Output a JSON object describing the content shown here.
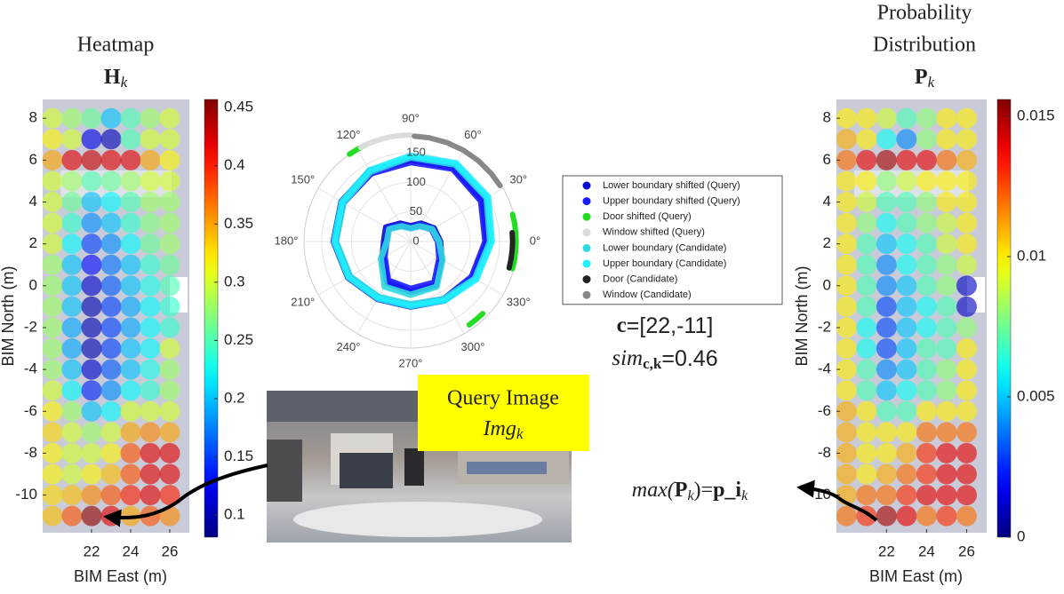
{
  "chart_data": [
    {
      "type": "heatmap",
      "title_lines": [
        "Heatmap"
      ],
      "title_symbol": "H",
      "title_subscript": "k",
      "xlabel": "BIM East (m)",
      "ylabel": "BIM North (m)",
      "x": [
        20,
        21,
        22,
        23,
        24,
        25,
        26
      ],
      "y": [
        8,
        7,
        6,
        5,
        4,
        3,
        2,
        1,
        0,
        -1,
        -2,
        -3,
        -4,
        -5,
        -6,
        -7,
        -8,
        -9,
        -10,
        -11
      ],
      "values": [
        [
          0.3,
          0.28,
          0.26,
          0.2,
          0.25,
          0.28,
          0.3
        ],
        [
          0.32,
          0.3,
          0.12,
          0.1,
          0.25,
          0.3,
          0.3
        ],
        [
          0.35,
          0.42,
          0.43,
          0.42,
          0.42,
          0.35,
          0.32
        ],
        [
          0.3,
          0.28,
          0.25,
          0.26,
          0.28,
          0.3,
          0.3
        ],
        [
          0.3,
          0.26,
          0.2,
          0.22,
          0.25,
          0.28,
          0.28
        ],
        [
          0.3,
          0.24,
          0.18,
          0.2,
          0.24,
          0.27,
          0.28
        ],
        [
          0.3,
          0.22,
          0.15,
          0.18,
          0.22,
          0.26,
          0.28
        ],
        [
          0.28,
          0.2,
          0.13,
          0.17,
          0.2,
          0.24,
          0.26
        ],
        [
          0.28,
          0.2,
          0.11,
          0.16,
          0.2,
          0.23,
          0.25
        ],
        [
          0.28,
          0.2,
          0.1,
          0.15,
          0.19,
          0.22,
          0.24
        ],
        [
          0.28,
          0.19,
          0.1,
          0.15,
          0.19,
          0.22,
          0.24
        ],
        [
          0.28,
          0.19,
          0.1,
          0.15,
          0.2,
          0.22,
          0.3
        ],
        [
          0.28,
          0.2,
          0.11,
          0.16,
          0.2,
          0.23,
          0.28
        ],
        [
          0.3,
          0.22,
          0.14,
          0.18,
          0.22,
          0.24,
          0.28
        ],
        [
          0.32,
          0.28,
          0.2,
          0.22,
          0.3,
          0.3,
          0.3
        ],
        [
          0.33,
          0.3,
          0.28,
          0.3,
          0.35,
          0.36,
          0.35
        ],
        [
          0.32,
          0.3,
          0.3,
          0.32,
          0.38,
          0.42,
          0.42
        ],
        [
          0.32,
          0.3,
          0.32,
          0.34,
          0.38,
          0.42,
          0.42
        ],
        [
          0.33,
          0.34,
          0.36,
          0.38,
          0.4,
          0.42,
          0.4
        ],
        [
          0.34,
          0.38,
          0.45,
          0.42,
          0.35,
          0.38,
          0.36
        ]
      ],
      "xlim": [
        19.5,
        27
      ],
      "ylim": [
        -11.8,
        8.9
      ],
      "xticks": [
        22,
        24,
        26
      ],
      "yticks": [
        8,
        6,
        4,
        2,
        0,
        -2,
        -4,
        -6,
        -8,
        -10
      ],
      "colormap": "jet",
      "clim": [
        0.081,
        0.457
      ],
      "cticks": [
        0.1,
        0.15,
        0.2,
        0.25,
        0.3,
        0.35,
        0.4,
        0.45
      ]
    },
    {
      "type": "polar",
      "rlim": [
        0,
        180
      ],
      "rticks": [
        0,
        50,
        100,
        150
      ],
      "thetaticks": [
        {
          "value": 0,
          "label": "0°"
        },
        {
          "value": 30,
          "label": "30°"
        },
        {
          "value": 60,
          "label": "60°"
        },
        {
          "value": 90,
          "label": "90°"
        },
        {
          "value": 120,
          "label": "120°"
        },
        {
          "value": 150,
          "label": "150°"
        },
        {
          "value": 180,
          "label": "180°"
        },
        {
          "value": 210,
          "label": "210°"
        },
        {
          "value": 240,
          "label": "240°"
        },
        {
          "value": 270,
          "label": "270°"
        },
        {
          "value": 300,
          "label": "300°"
        },
        {
          "value": 330,
          "label": "330°"
        }
      ],
      "legend": "right",
      "series": [
        {
          "name": "Lower boundary shifted (Query)",
          "color": "#0a0ad0",
          "theta": [
            0,
            30,
            60,
            90,
            120,
            150,
            180,
            210,
            240,
            270,
            300,
            330,
            360,
            null,
            0,
            30,
            60,
            90,
            120,
            150,
            180,
            210,
            240,
            270,
            300,
            330,
            360
          ],
          "r": [
            129,
            140,
            145,
            138,
            138,
            135,
            130,
            122,
            112,
            110,
            115,
            122,
            129,
            null,
            50,
            45,
            35,
            26,
            35,
            48,
            45,
            55,
            80,
            85,
            85,
            60,
            50
          ]
        },
        {
          "name": "Upper boundary shifted (Query)",
          "color": "#1a1aff",
          "theta": [
            0,
            30,
            60,
            90,
            120,
            150,
            180,
            210,
            240,
            270,
            300,
            330,
            360,
            null,
            0,
            30,
            60,
            90,
            120,
            150,
            180,
            210,
            240,
            270,
            300,
            330,
            360
          ],
          "r": [
            126,
            137,
            142,
            134,
            133,
            131,
            127,
            119,
            110,
            108,
            112,
            119,
            126,
            null,
            46,
            41,
            31,
            23,
            31,
            44,
            41,
            51,
            76,
            80,
            80,
            56,
            46
          ]
        },
        {
          "name": "Door shifted (Query)",
          "color": "#22dd22",
          "theta": [
            115,
            120,
            125,
            null,
            345,
            350,
            355,
            0,
            5,
            10,
            15,
            null,
            305,
            310,
            315
          ],
          "r": [
            180,
            180,
            180,
            null,
            178,
            178,
            178,
            178,
            178,
            178,
            178,
            null,
            172,
            172,
            172
          ]
        },
        {
          "name": "Window shifted (Query)",
          "color": "#dcdcdc",
          "theta": [
            90,
            95,
            100,
            105,
            110,
            115,
            118
          ],
          "r": [
            180,
            180,
            180,
            180,
            180,
            180,
            180
          ]
        },
        {
          "name": "Lower boundary (Candidate)",
          "color": "#30d8e0",
          "theta": [
            0,
            30,
            60,
            90,
            120,
            150,
            180,
            210,
            240,
            270,
            300,
            330,
            360,
            null,
            0,
            30,
            60,
            90,
            120,
            150,
            180,
            210,
            240,
            270,
            300,
            330,
            360
          ],
          "r": [
            134,
            148,
            150,
            142,
            136,
            131,
            126,
            118,
            108,
            106,
            112,
            125,
            134,
            null,
            48,
            42,
            30,
            22,
            30,
            42,
            40,
            58,
            88,
            90,
            88,
            62,
            48
          ]
        },
        {
          "name": "Upper boundary (Candidate)",
          "color": "#20f0ff",
          "theta": [
            0,
            30,
            60,
            90,
            120,
            150,
            180,
            210,
            240,
            270,
            300,
            330,
            360
          ],
          "r": [
            137,
            151,
            153,
            145,
            139,
            134,
            129,
            121,
            111,
            109,
            115,
            128,
            137
          ]
        },
        {
          "name": "Door (Candidate)",
          "color": "#222222",
          "theta": [
            345,
            350,
            355,
            0,
            5
          ],
          "r": [
            172,
            172,
            172,
            172,
            172
          ]
        },
        {
          "name": "Window (Candidate)",
          "color": "#888888",
          "theta": [
            32,
            40,
            50,
            60,
            70,
            80,
            88
          ],
          "r": [
            178,
            178,
            178,
            178,
            178,
            178,
            178
          ]
        }
      ]
    },
    {
      "type": "heatmap",
      "title_lines": [
        "Probability",
        "Distribution"
      ],
      "title_symbol": "P",
      "title_subscript": "k",
      "xlabel": "BIM East (m)",
      "ylabel": "BIM North (m)",
      "x": [
        20,
        21,
        22,
        23,
        24,
        25,
        26
      ],
      "y": [
        8,
        7,
        6,
        5,
        4,
        3,
        2,
        1,
        0,
        -1,
        -2,
        -3,
        -4,
        -5,
        -6,
        -7,
        -8,
        -9,
        -10,
        -11
      ],
      "values": [
        [
          0.01,
          0.01,
          0.009,
          0.007,
          0.008,
          0.01,
          0.01
        ],
        [
          0.011,
          0.01,
          0.006,
          0.004,
          0.008,
          0.01,
          0.01
        ],
        [
          0.012,
          0.014,
          0.015,
          0.014,
          0.014,
          0.012,
          0.011
        ],
        [
          0.01,
          0.01,
          0.008,
          0.009,
          0.01,
          0.01,
          0.01
        ],
        [
          0.01,
          0.009,
          0.007,
          0.007,
          0.008,
          0.01,
          0.01
        ],
        [
          0.01,
          0.008,
          0.006,
          0.007,
          0.008,
          0.009,
          0.01
        ],
        [
          0.01,
          0.007,
          0.005,
          0.006,
          0.007,
          0.009,
          0.01
        ],
        [
          0.01,
          0.007,
          0.004,
          0.006,
          0.007,
          0.008,
          0.009
        ],
        [
          0.01,
          0.007,
          0.004,
          0.005,
          0.007,
          0.008,
          0.001
        ],
        [
          0.01,
          0.007,
          0.003,
          0.005,
          0.006,
          0.007,
          0.001
        ],
        [
          0.01,
          0.006,
          0.003,
          0.005,
          0.006,
          0.007,
          0.008
        ],
        [
          0.01,
          0.006,
          0.003,
          0.005,
          0.007,
          0.007,
          0.01
        ],
        [
          0.01,
          0.007,
          0.004,
          0.005,
          0.007,
          0.008,
          0.01
        ],
        [
          0.01,
          0.007,
          0.005,
          0.006,
          0.007,
          0.008,
          0.01
        ],
        [
          0.011,
          0.01,
          0.007,
          0.007,
          0.01,
          0.01,
          0.01
        ],
        [
          0.011,
          0.01,
          0.01,
          0.01,
          0.012,
          0.012,
          0.012
        ],
        [
          0.011,
          0.01,
          0.01,
          0.011,
          0.013,
          0.014,
          0.014
        ],
        [
          0.011,
          0.01,
          0.011,
          0.012,
          0.013,
          0.014,
          0.014
        ],
        [
          0.011,
          0.012,
          0.012,
          0.013,
          0.014,
          0.014,
          0.014
        ],
        [
          0.012,
          0.013,
          0.015,
          0.014,
          0.012,
          0.013,
          0.012
        ]
      ],
      "xlim": [
        19.5,
        27
      ],
      "ylim": [
        -11.8,
        8.9
      ],
      "xticks": [
        22,
        24,
        26
      ],
      "yticks": [
        8,
        6,
        4,
        2,
        0,
        -2,
        -4,
        -6,
        -8,
        -10
      ],
      "colormap": "jet",
      "clim": [
        0,
        0.0156
      ],
      "cticks": [
        0,
        0.005,
        0.01,
        0.015
      ]
    }
  ],
  "annotations": {
    "center": {
      "symbol": "c",
      "text": "=[22,-11]"
    },
    "similarity": {
      "symbol": "sim",
      "subscript": "c,k",
      "text": "=0.46"
    },
    "query_image": {
      "title": "Query Image",
      "symbol": "Img",
      "subscript": "k"
    },
    "maximum": {
      "func": "max(",
      "symbol": "P",
      "subscript": "k",
      "middle": ")=",
      "result": "p_i",
      "result_subscript": "k"
    }
  }
}
